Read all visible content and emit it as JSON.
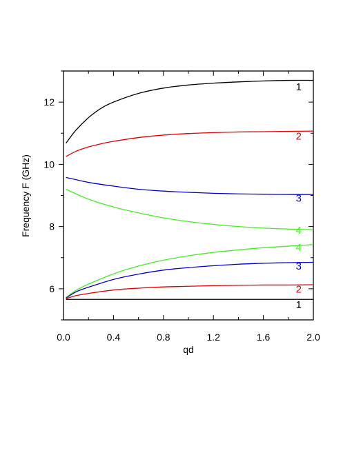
{
  "chart_data": {
    "type": "line",
    "title": "",
    "xlabel": "qd",
    "ylabel": "Frequency  F (GHz)",
    "xlim": [
      0.0,
      2.0
    ],
    "ylim": [
      5.0,
      13.0
    ],
    "x_ticks": [
      "0.0",
      "0.4",
      "0.8",
      "1.2",
      "1.6",
      "2.0"
    ],
    "y_ticks": [
      "6",
      "8",
      "10",
      "12"
    ],
    "grid": false,
    "legend": "none",
    "series": [
      {
        "label": "1",
        "color": "#000000",
        "x": [
          0.02,
          0.1,
          0.2,
          0.3,
          0.4,
          0.6,
          0.8,
          1.0,
          1.2,
          1.4,
          1.6,
          1.8,
          2.0
        ],
        "y": [
          10.68,
          11.1,
          11.5,
          11.8,
          12.0,
          12.28,
          12.45,
          12.55,
          12.61,
          12.65,
          12.68,
          12.7,
          12.7
        ]
      },
      {
        "label": "2",
        "color": "#e00000",
        "x": [
          0.02,
          0.1,
          0.2,
          0.3,
          0.4,
          0.6,
          0.8,
          1.0,
          1.2,
          1.4,
          1.6,
          1.8,
          2.0
        ],
        "y": [
          10.25,
          10.42,
          10.56,
          10.66,
          10.74,
          10.86,
          10.94,
          10.99,
          11.02,
          11.04,
          11.05,
          11.06,
          11.07
        ]
      },
      {
        "label": "3",
        "color": "#0000cc",
        "x": [
          0.02,
          0.2,
          0.4,
          0.6,
          0.8,
          1.0,
          1.2,
          1.4,
          1.6,
          1.8,
          2.0
        ],
        "y": [
          9.58,
          9.42,
          9.3,
          9.2,
          9.14,
          9.1,
          9.07,
          9.05,
          9.04,
          9.03,
          9.03
        ]
      },
      {
        "label": "4",
        "color": "#44ee22",
        "x": [
          0.02,
          0.2,
          0.4,
          0.6,
          0.8,
          1.0,
          1.2,
          1.4,
          1.6,
          1.8,
          2.0
        ],
        "y": [
          9.2,
          8.88,
          8.63,
          8.44,
          8.28,
          8.16,
          8.07,
          8.0,
          7.95,
          7.92,
          7.9
        ]
      },
      {
        "label": "4",
        "color": "#44ee22",
        "x": [
          0.02,
          0.1,
          0.2,
          0.4,
          0.6,
          0.8,
          1.0,
          1.2,
          1.4,
          1.6,
          1.8,
          2.0
        ],
        "y": [
          5.72,
          5.95,
          6.15,
          6.48,
          6.73,
          6.92,
          7.06,
          7.17,
          7.25,
          7.32,
          7.37,
          7.42
        ]
      },
      {
        "label": "3",
        "color": "#0000cc",
        "x": [
          0.02,
          0.1,
          0.2,
          0.4,
          0.6,
          0.8,
          1.0,
          1.2,
          1.4,
          1.6,
          1.8,
          2.0
        ],
        "y": [
          5.7,
          5.9,
          6.05,
          6.3,
          6.47,
          6.6,
          6.68,
          6.74,
          6.79,
          6.82,
          6.84,
          6.85
        ]
      },
      {
        "label": "2",
        "color": "#e00000",
        "x": [
          0.02,
          0.1,
          0.2,
          0.4,
          0.6,
          0.8,
          1.0,
          1.2,
          1.4,
          1.6,
          1.8,
          2.0
        ],
        "y": [
          5.68,
          5.78,
          5.85,
          5.96,
          6.02,
          6.06,
          6.08,
          6.1,
          6.11,
          6.12,
          6.12,
          6.13
        ]
      },
      {
        "label": "1",
        "color": "#000000",
        "x": [
          0.02,
          2.0
        ],
        "y": [
          5.66,
          5.66
        ]
      }
    ],
    "curve_labels": [
      {
        "text": "1",
        "color": "#000000",
        "x": 1.86,
        "y": 12.38
      },
      {
        "text": "2",
        "color": "#e00000",
        "x": 1.86,
        "y": 10.8
      },
      {
        "text": "3",
        "color": "#0000cc",
        "x": 1.86,
        "y": 8.8
      },
      {
        "text": "4",
        "color": "#44ee22",
        "x": 1.86,
        "y": 7.77
      },
      {
        "text": "4",
        "color": "#44ee22",
        "x": 1.86,
        "y": 7.22
      },
      {
        "text": "3",
        "color": "#0000cc",
        "x": 1.86,
        "y": 6.62
      },
      {
        "text": "2",
        "color": "#e00000",
        "x": 1.86,
        "y": 5.88
      },
      {
        "text": "1",
        "color": "#000000",
        "x": 1.86,
        "y": 5.38
      }
    ]
  }
}
